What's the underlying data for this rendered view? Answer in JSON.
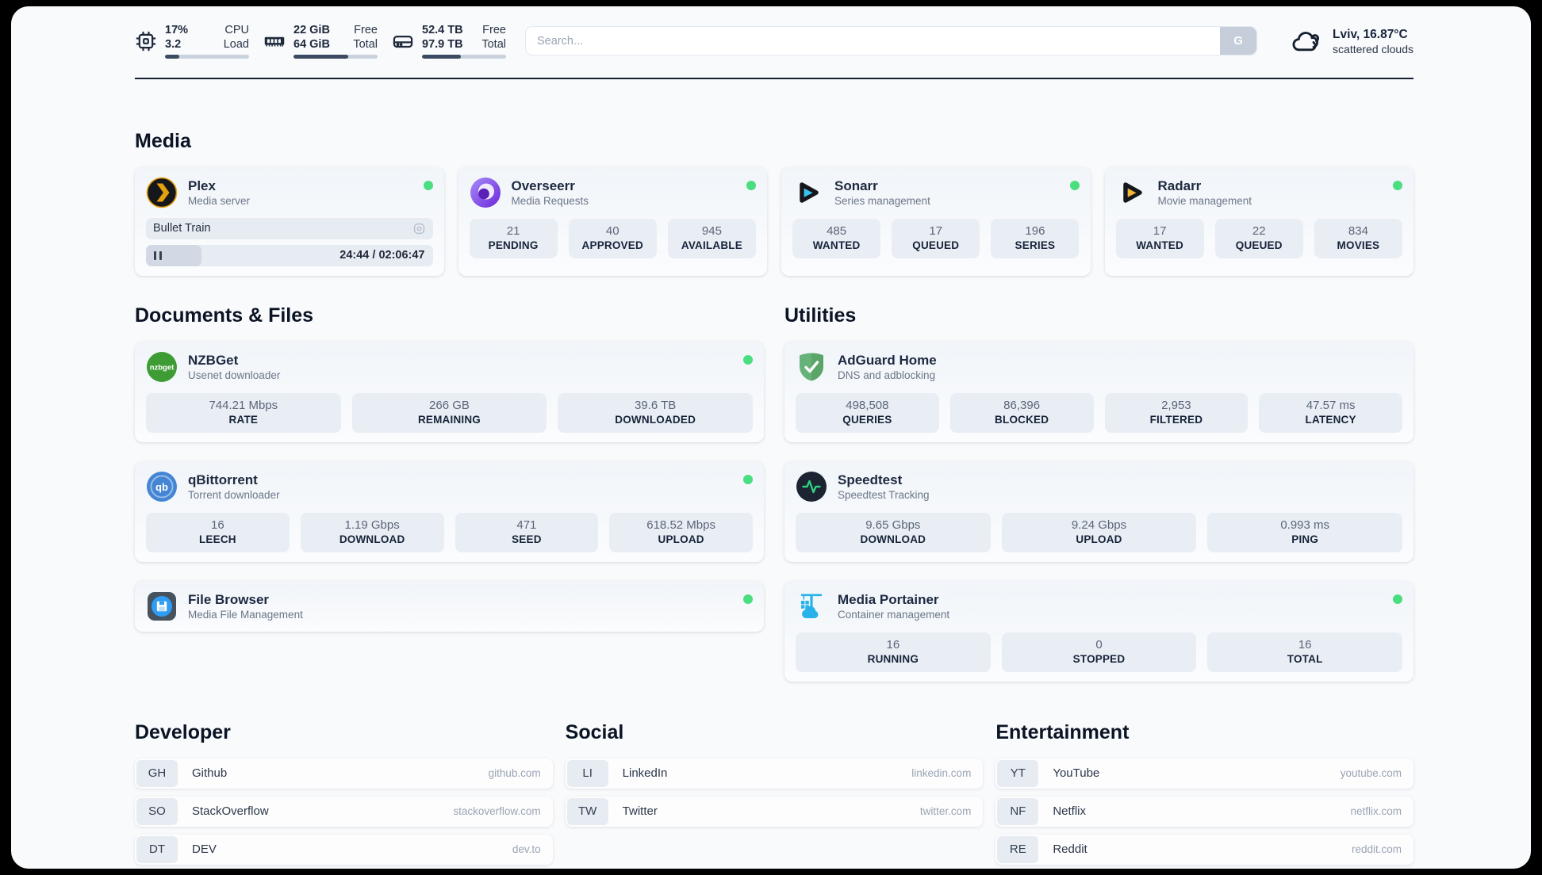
{
  "topbar": {
    "cpu": {
      "stat1": "17%",
      "stat2": "3.2",
      "label1": "CPU",
      "label2": "Load",
      "progress_pct": 17
    },
    "memory": {
      "stat1": "22 GiB",
      "stat2": "64 GiB",
      "label1": "Free",
      "label2": "Total",
      "progress_pct": 65
    },
    "disk": {
      "stat1": "52.4 TB",
      "stat2": "97.9 TB",
      "label1": "Free",
      "label2": "Total",
      "progress_pct": 46
    },
    "search": {
      "placeholder": "Search...",
      "button": "G"
    },
    "weather": {
      "summary": "Lviv, 16.87°C",
      "condition": "scattered clouds"
    }
  },
  "sections": {
    "media": {
      "title": "Media",
      "cards": [
        {
          "name": "Plex",
          "subtitle": "Media server",
          "status": "online",
          "now_playing": {
            "title": "Bullet Train",
            "time_display": "24:44 / 02:06:47",
            "progress_pct": 19.5
          }
        },
        {
          "name": "Overseerr",
          "subtitle": "Media Requests",
          "status": "online",
          "stats": [
            {
              "value": "21",
              "label": "PENDING"
            },
            {
              "value": "40",
              "label": "APPROVED"
            },
            {
              "value": "945",
              "label": "AVAILABLE"
            }
          ]
        },
        {
          "name": "Sonarr",
          "subtitle": "Series management",
          "status": "online",
          "stats": [
            {
              "value": "485",
              "label": "WANTED"
            },
            {
              "value": "17",
              "label": "QUEUED"
            },
            {
              "value": "196",
              "label": "SERIES"
            }
          ]
        },
        {
          "name": "Radarr",
          "subtitle": "Movie management",
          "status": "online",
          "stats": [
            {
              "value": "17",
              "label": "WANTED"
            },
            {
              "value": "22",
              "label": "QUEUED"
            },
            {
              "value": "834",
              "label": "MOVIES"
            }
          ]
        }
      ]
    },
    "documents": {
      "title": "Documents & Files",
      "cards": [
        {
          "name": "NZBGet",
          "subtitle": "Usenet downloader",
          "status": "online",
          "stats": [
            {
              "value": "744.21 Mbps",
              "label": "RATE"
            },
            {
              "value": "266 GB",
              "label": "REMAINING"
            },
            {
              "value": "39.6 TB",
              "label": "DOWNLOADED"
            }
          ]
        },
        {
          "name": "qBittorrent",
          "subtitle": "Torrent downloader",
          "status": "online",
          "stats": [
            {
              "value": "16",
              "label": "LEECH"
            },
            {
              "value": "1.19 Gbps",
              "label": "DOWNLOAD"
            },
            {
              "value": "471",
              "label": "SEED"
            },
            {
              "value": "618.52 Mbps",
              "label": "UPLOAD"
            }
          ]
        },
        {
          "name": "File Browser",
          "subtitle": "Media File Management",
          "status": "online"
        }
      ]
    },
    "utilities": {
      "title": "Utilities",
      "cards": [
        {
          "name": "AdGuard Home",
          "subtitle": "DNS and adblocking",
          "status": "none",
          "stats": [
            {
              "value": "498,508",
              "label": "QUERIES"
            },
            {
              "value": "86,396",
              "label": "BLOCKED"
            },
            {
              "value": "2,953",
              "label": "FILTERED"
            },
            {
              "value": "47.57 ms",
              "label": "LATENCY"
            }
          ]
        },
        {
          "name": "Speedtest",
          "subtitle": "Speedtest Tracking",
          "status": "none",
          "stats": [
            {
              "value": "9.65 Gbps",
              "label": "DOWNLOAD"
            },
            {
              "value": "9.24 Gbps",
              "label": "UPLOAD"
            },
            {
              "value": "0.993 ms",
              "label": "PING"
            }
          ]
        },
        {
          "name": "Media Portainer",
          "subtitle": "Container management",
          "status": "online",
          "stats": [
            {
              "value": "16",
              "label": "RUNNING"
            },
            {
              "value": "0",
              "label": "STOPPED"
            },
            {
              "value": "16",
              "label": "TOTAL"
            }
          ]
        }
      ]
    },
    "bookmarks": [
      {
        "title": "Developer",
        "links": [
          {
            "abbr": "GH",
            "name": "Github",
            "domain": "github.com"
          },
          {
            "abbr": "SO",
            "name": "StackOverflow",
            "domain": "stackoverflow.com"
          },
          {
            "abbr": "DT",
            "name": "DEV",
            "domain": "dev.to"
          }
        ]
      },
      {
        "title": "Social",
        "links": [
          {
            "abbr": "LI",
            "name": "LinkedIn",
            "domain": "linkedin.com"
          },
          {
            "abbr": "TW",
            "name": "Twitter",
            "domain": "twitter.com"
          }
        ]
      },
      {
        "title": "Entertainment",
        "links": [
          {
            "abbr": "YT",
            "name": "YouTube",
            "domain": "youtube.com"
          },
          {
            "abbr": "NF",
            "name": "Netflix",
            "domain": "netflix.com"
          },
          {
            "abbr": "RE",
            "name": "Reddit",
            "domain": "reddit.com"
          }
        ]
      }
    ]
  },
  "colors": {
    "status_online": "#4ade80",
    "accent_dark": "#16202e",
    "page_bg": "#f8fafc",
    "stat_bg": "#e9eef4"
  }
}
